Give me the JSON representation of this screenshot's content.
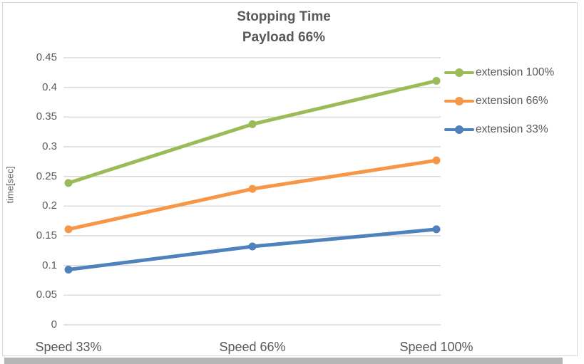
{
  "chart_data": {
    "type": "line",
    "title": "Stopping Time",
    "subtitle": "Payload 66%",
    "categories": [
      "Speed 33%",
      "Speed 66%",
      "Speed 100%"
    ],
    "series": [
      {
        "name": "extension 100%",
        "color": "#9BBB59",
        "values": [
          0.239,
          0.338,
          0.411
        ]
      },
      {
        "name": "extension 66%",
        "color": "#F79646",
        "values": [
          0.161,
          0.229,
          0.277
        ]
      },
      {
        "name": "extension 33%",
        "color": "#4F81BD",
        "values": [
          0.093,
          0.132,
          0.161
        ]
      }
    ],
    "xlabel": "",
    "ylabel": "time[sec]",
    "ylim": [
      0,
      0.45
    ],
    "ytick_step": 0.05,
    "yticks": [
      "0.45",
      "0.4",
      "0.35",
      "0.3",
      "0.25",
      "0.2",
      "0.15",
      "0.1",
      "0.05",
      "0"
    ],
    "grid": true,
    "legend_position": "right",
    "marker": "circle"
  },
  "colors": {
    "text": "#595959",
    "gridline": "#D9D9D9",
    "frame_border": "#D9D9D9",
    "bottom_strip": "#B6B6B6",
    "background": "#FFFFFF"
  }
}
